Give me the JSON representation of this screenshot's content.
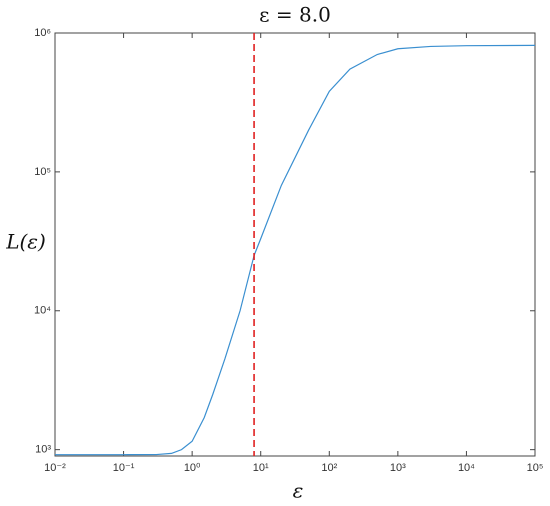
{
  "chart_data": {
    "type": "line",
    "title": "ε = 8.0",
    "x_label": "ε",
    "y_label": "L(ε)",
    "x": [
      0.01,
      0.1,
      0.3,
      0.5,
      0.7,
      1,
      1.5,
      2,
      3,
      5,
      8,
      10,
      20,
      50,
      100,
      200,
      500,
      1000,
      3000,
      10000,
      100000
    ],
    "series": [
      {
        "name": "L",
        "color": "#3a8fd0",
        "values": [
          920,
          920,
          922,
          940,
          1000,
          1150,
          1700,
          2500,
          4500,
          10000,
          25000,
          33000,
          80000,
          200000,
          380000,
          550000,
          700000,
          770000,
          800000,
          810000,
          815000
        ]
      }
    ],
    "vline": {
      "value": 8,
      "color": "#e02020"
    },
    "xscale": "log",
    "yscale": "log",
    "xlim": [
      0.01,
      100000
    ],
    "ylim": [
      900,
      1000000
    ],
    "xticks": [
      {
        "value": 0.01,
        "label": "10⁻²"
      },
      {
        "value": 0.1,
        "label": "10⁻¹"
      },
      {
        "value": 1,
        "label": "10⁰"
      },
      {
        "value": 10,
        "label": "10¹"
      },
      {
        "value": 100,
        "label": "10²"
      },
      {
        "value": 1000,
        "label": "10³"
      },
      {
        "value": 10000,
        "label": "10⁴"
      },
      {
        "value": 100000,
        "label": "10⁵"
      }
    ],
    "yticks": [
      {
        "value": 1000,
        "label": "10³"
      },
      {
        "value": 10000,
        "label": "10⁴"
      },
      {
        "value": 100000,
        "label": "10⁵"
      },
      {
        "value": 1000000,
        "label": "10⁶"
      }
    ]
  }
}
